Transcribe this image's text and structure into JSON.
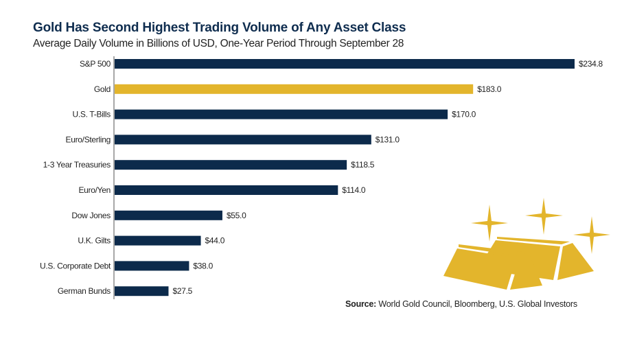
{
  "chart_data": {
    "type": "bar",
    "orientation": "horizontal",
    "title": "Gold Has Second Highest Trading Volume of Any Asset Class",
    "subtitle": "Average Daily Volume in Billions of USD, One-Year Period Through September 28",
    "xlabel": "",
    "ylabel": "",
    "categories": [
      "S&P 500",
      "Gold",
      "U.S. T-Bills",
      "Euro/Sterling",
      "1-3 Year Treasuries",
      "Euro/Yen",
      "Dow Jones",
      "U.K. Gilts",
      "U.S. Corporate Debt",
      "German Bunds"
    ],
    "values": [
      234.8,
      183.0,
      170.0,
      131.0,
      118.5,
      114.0,
      55.0,
      44.0,
      38.0,
      27.5
    ],
    "value_labels": [
      "$234.8",
      "$183.0",
      "$170.0",
      "$131.0",
      "$118.5",
      "$114.0",
      "$55.0",
      "$44.0",
      "$38.0",
      "$27.5"
    ],
    "highlight": "Gold",
    "xlim": [
      0,
      234.8
    ],
    "grid": false,
    "legend": "none",
    "colors": {
      "default": "#0c2a4b",
      "highlight": "#e3b52c"
    },
    "source_label": "Source:",
    "source_text": " World Gold Council, Bloomberg, U.S. Global Investors"
  },
  "illustration": {
    "icon": "gold-bars-icon",
    "color": "#e3b52c"
  }
}
